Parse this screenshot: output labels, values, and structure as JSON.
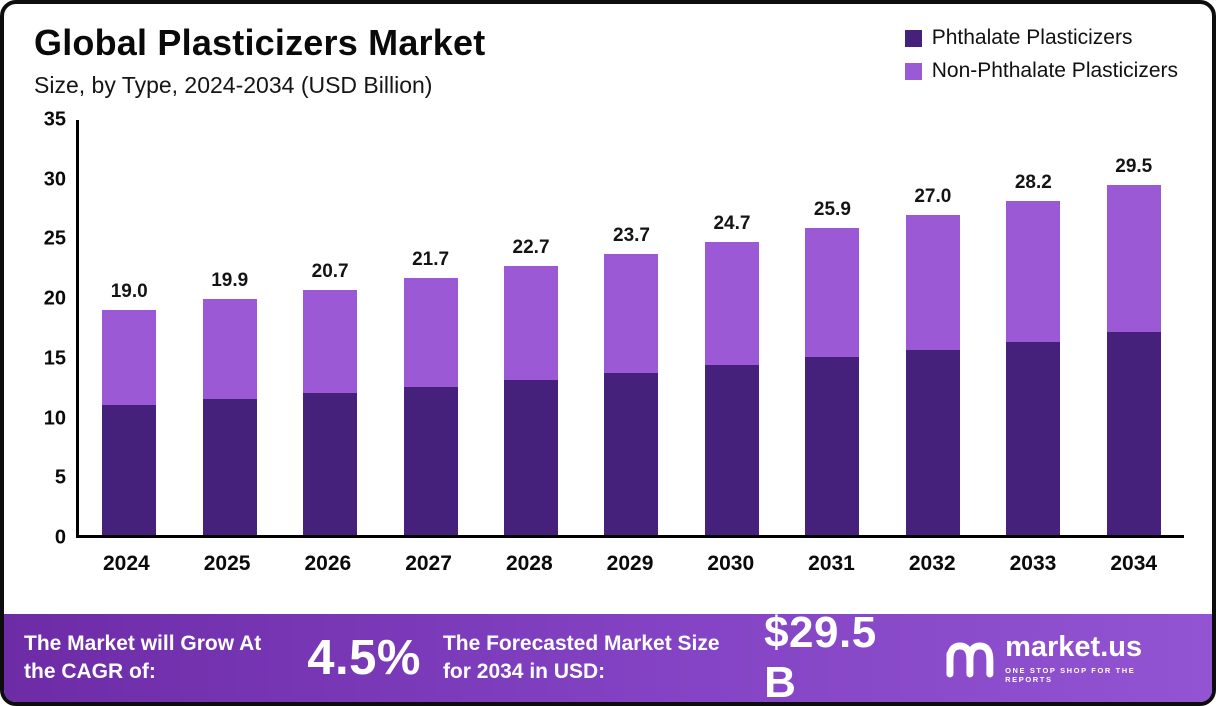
{
  "header": {
    "title": "Global Plasticizers Market",
    "subtitle": "Size, by Type, 2024-2034 (USD Billion)"
  },
  "legend": [
    {
      "label": "Phthalate Plasticizers",
      "color": "#45217c"
    },
    {
      "label": "Non-Phthalate Plasticizers",
      "color": "#9b59d6"
    }
  ],
  "chart_data": {
    "type": "bar",
    "stacked": true,
    "title": "Global Plasticizers Market Size, by Type, 2024-2034 (USD Billion)",
    "categories": [
      "2024",
      "2025",
      "2026",
      "2027",
      "2028",
      "2029",
      "2030",
      "2031",
      "2032",
      "2033",
      "2034"
    ],
    "series": [
      {
        "name": "Phthalate Plasticizers",
        "color": "#45217c",
        "values": [
          11.0,
          11.5,
          12.0,
          12.5,
          13.1,
          13.7,
          14.3,
          15.0,
          15.6,
          16.3,
          17.1
        ]
      },
      {
        "name": "Non-Phthalate Plasticizers",
        "color": "#9b59d6",
        "values": [
          8.0,
          8.4,
          8.7,
          9.2,
          9.6,
          10.0,
          10.4,
          10.9,
          11.4,
          11.9,
          12.4
        ]
      }
    ],
    "totals": [
      19.0,
      19.9,
      20.7,
      21.7,
      22.7,
      23.7,
      24.7,
      25.9,
      27.0,
      28.2,
      29.5
    ],
    "ylim": [
      0,
      35
    ],
    "yticks": [
      0,
      5,
      10,
      15,
      20,
      25,
      30,
      35
    ],
    "xlabel": "",
    "ylabel": "",
    "grid": false,
    "legend_position": "top-right",
    "value_labels": "totals above bars"
  },
  "footer": {
    "cagr_label": "The Market will Grow At the CAGR of:",
    "cagr_value": "4.5%",
    "forecast_label": "The Forecasted Market Size for 2034 in USD:",
    "forecast_value": "$29.5 B",
    "brand_name": "market.us",
    "brand_tagline": "ONE STOP SHOP FOR THE REPORTS"
  }
}
